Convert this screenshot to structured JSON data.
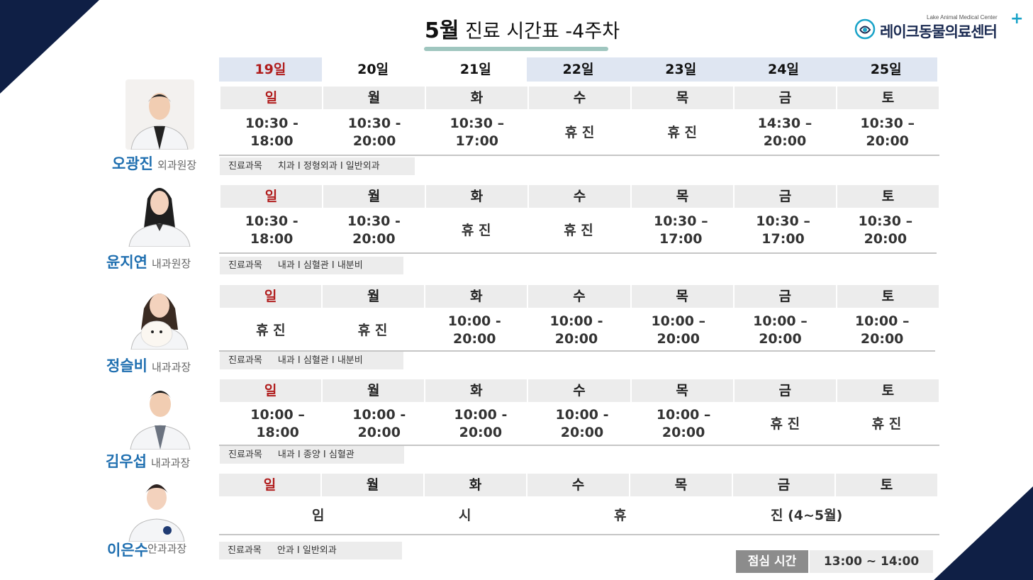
{
  "header": {
    "title_month": "5월",
    "title_rest": " 진료 시간표 -4주차",
    "logo_sub": "Lake Animal Medical Center",
    "logo_name": "레이크동물의료센터",
    "logo_plus": "+"
  },
  "dates": [
    "19일",
    "20일",
    "21일",
    "22일",
    "23일",
    "24일",
    "25일"
  ],
  "weekdays": [
    "일",
    "월",
    "화",
    "수",
    "목",
    "금",
    "토"
  ],
  "dept_label": "진료과목",
  "doctors": [
    {
      "name": "오광진",
      "role": "외과원장",
      "depts": "치과 I 정형외과 I 일반외과",
      "hours": [
        "10:30 -\n18:00",
        "10:30 -\n20:00",
        "10:30 –\n17:00",
        "휴 진",
        "휴 진",
        "14:30 –\n20:00",
        "10:30 –\n20:00"
      ]
    },
    {
      "name": "윤지연",
      "role": "내과원장",
      "depts": "내과 I 심혈관 I 내분비",
      "hours": [
        "10:30 -\n18:00",
        "10:30 -\n20:00",
        "휴 진",
        "휴 진",
        "10:30 –\n17:00",
        "10:30 –\n17:00",
        "10:30 –\n20:00"
      ]
    },
    {
      "name": "정슬비",
      "role": "내과과장",
      "depts": "내과 I 심혈관 I 내분비",
      "hours": [
        "휴 진",
        "휴 진",
        "10:00 -\n20:00",
        "10:00 -\n20:00",
        "10:00 –\n20:00",
        "10:00 –\n20:00",
        "10:00 –\n20:00"
      ]
    },
    {
      "name": "김우섭",
      "role": "내과과장",
      "depts": "내과 I 종양 I 심혈관",
      "hours": [
        "10:00 –\n18:00",
        "10:00 -\n20:00",
        "10:00 -\n20:00",
        "10:00 -\n20:00",
        "10:00 –\n20:00",
        "휴 진",
        "휴 진"
      ]
    },
    {
      "name": "이은수",
      "role": "안과과장",
      "depts": "안과 I 일반외과",
      "leave": [
        "임",
        "시",
        "휴",
        "진 (4~5월)"
      ]
    }
  ],
  "lunch": {
    "label": "점심 시간",
    "time": "13:00 ~ 14:00"
  },
  "colors": {
    "navy": "#0f1f45",
    "sunday_red": "#b01c1c",
    "name_blue": "#1f6fb0",
    "date_bg": "#dfe6f2",
    "cell_bg": "#ececec",
    "accent_teal": "#9fc6bf",
    "logo_plus": "#1aa3c8"
  }
}
